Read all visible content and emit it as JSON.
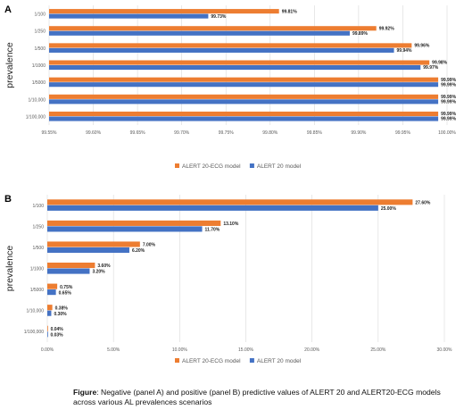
{
  "colors": {
    "ecg": "#ED7D31",
    "base": "#4472C4",
    "grid": "#d9d9d9",
    "text": "#595959"
  },
  "chart_data": [
    {
      "panel_label": "A",
      "type": "bar",
      "orientation": "horizontal",
      "ylabel": "prevalence",
      "categories": [
        "1/100",
        "1/250",
        "1/500",
        "1/1000",
        "1/5000",
        "1/10,000",
        "1/100,000"
      ],
      "series": [
        {
          "name": "ALERT 20-ECG model",
          "values": [
            99.81,
            99.92,
            99.96,
            99.98,
            99.99,
            99.99,
            99.99
          ],
          "labels": [
            "99.81%",
            "99.92%",
            "99.96%",
            "99.98%",
            "99.99%",
            "99.99%",
            "99.99%"
          ],
          "color": "#ED7D31"
        },
        {
          "name": "ALERT 20 model",
          "values": [
            99.73,
            99.89,
            99.94,
            99.97,
            99.99,
            99.99,
            99.99
          ],
          "labels": [
            "99.73%",
            "99.89%",
            "99.94%",
            "99.97%",
            "99.99%",
            "99.99%",
            "99.99%"
          ],
          "color": "#4472C4"
        }
      ],
      "xlim": [
        99.55,
        100.0
      ],
      "xticks": [
        99.55,
        99.6,
        99.65,
        99.7,
        99.75,
        99.8,
        99.85,
        99.9,
        99.95,
        100.0
      ],
      "xtick_labels": [
        "99.55%",
        "99.60%",
        "99.65%",
        "99.70%",
        "99.75%",
        "99.80%",
        "99.85%",
        "99.90%",
        "99.95%",
        "100.00%"
      ],
      "grid": true,
      "legend": "bottom"
    },
    {
      "panel_label": "B",
      "type": "bar",
      "orientation": "horizontal",
      "ylabel": "prevalence",
      "categories": [
        "1/100",
        "1/250",
        "1/500",
        "1/1000",
        "1/5000",
        "1/10,000",
        "1/100,000"
      ],
      "series": [
        {
          "name": "ALERT 20-ECG model",
          "values": [
            27.6,
            13.1,
            7.0,
            3.6,
            0.75,
            0.38,
            0.04
          ],
          "labels": [
            "27.60%",
            "13.10%",
            "7.00%",
            "3.60%",
            "0.75%",
            "0.38%",
            "0.04%"
          ],
          "color": "#ED7D31"
        },
        {
          "name": "ALERT 20 model",
          "values": [
            25.0,
            11.7,
            6.2,
            3.2,
            0.65,
            0.3,
            0.03
          ],
          "labels": [
            "25.00%",
            "11.70%",
            "6.20%",
            "3.20%",
            "0.65%",
            "0.30%",
            "0.03%"
          ],
          "color": "#4472C4"
        }
      ],
      "xlim": [
        0,
        30
      ],
      "xticks": [
        0,
        5,
        10,
        15,
        20,
        25,
        30
      ],
      "xtick_labels": [
        "0.00%",
        "5.00%",
        "10.00%",
        "15.00%",
        "20.00%",
        "25.00%",
        "30.00%"
      ],
      "grid": true,
      "legend": "bottom"
    }
  ],
  "caption": {
    "label": "Figure",
    "text": ": Negative (panel A) and positive (panel B) predictive values of ALERT 20 and ALERT20-ECG models across various AL prevalences scenarios"
  }
}
